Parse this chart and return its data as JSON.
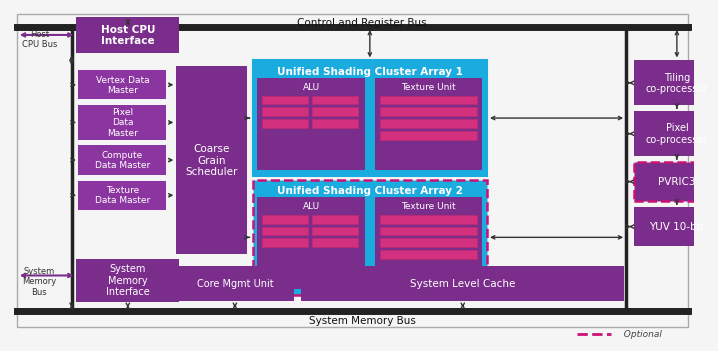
{
  "bg_color": "#f5f5f5",
  "purple_dark": "#7B2D8B",
  "purple_mid": "#8B35A0",
  "cyan_bg": "#1AABDF",
  "pink_inner": "#D43080",
  "pink_inner2": "#C02870",
  "bus_color": "#222222",
  "optional_color": "#CC1177",
  "text_dark": "#222222",
  "arrow_color": "#333333",
  "ctrl_bus_label": "Control and Register Bus",
  "sys_bus_label": "System Memory Bus",
  "host_cpu_label": "Host CPU\nInterface",
  "host_cpu_bus": "Host\nCPU Bus",
  "sys_mem_label": "System\nMemory\nInterface",
  "sys_mem_bus": "System\nMemory\nBus",
  "vertex_label": "Vertex Data\nMaster",
  "pixel_label": "Pixel\nData\nMaster",
  "compute_label": "Compute\nData Master",
  "texture_master_label": "Texture\nData Master",
  "coarse_label": "Coarse\nGrain\nScheduler",
  "cluster1_label": "Unified Shading Cluster Array 1",
  "cluster2_label": "Unified Shading Cluster Array 2",
  "alu_label": "ALU",
  "tex_unit_label": "Texture Unit",
  "tiling_label": "Tiling\nco-processor",
  "pixel_proc_label": "Pixel\nco-processor",
  "pvric_label": "PVRIC3",
  "yuv_label": "YUV 10-bit",
  "core_mgmt_label": "Core Mgmt Unit",
  "sys_cache_label": "System Level Cache",
  "optional_label": "Optional"
}
